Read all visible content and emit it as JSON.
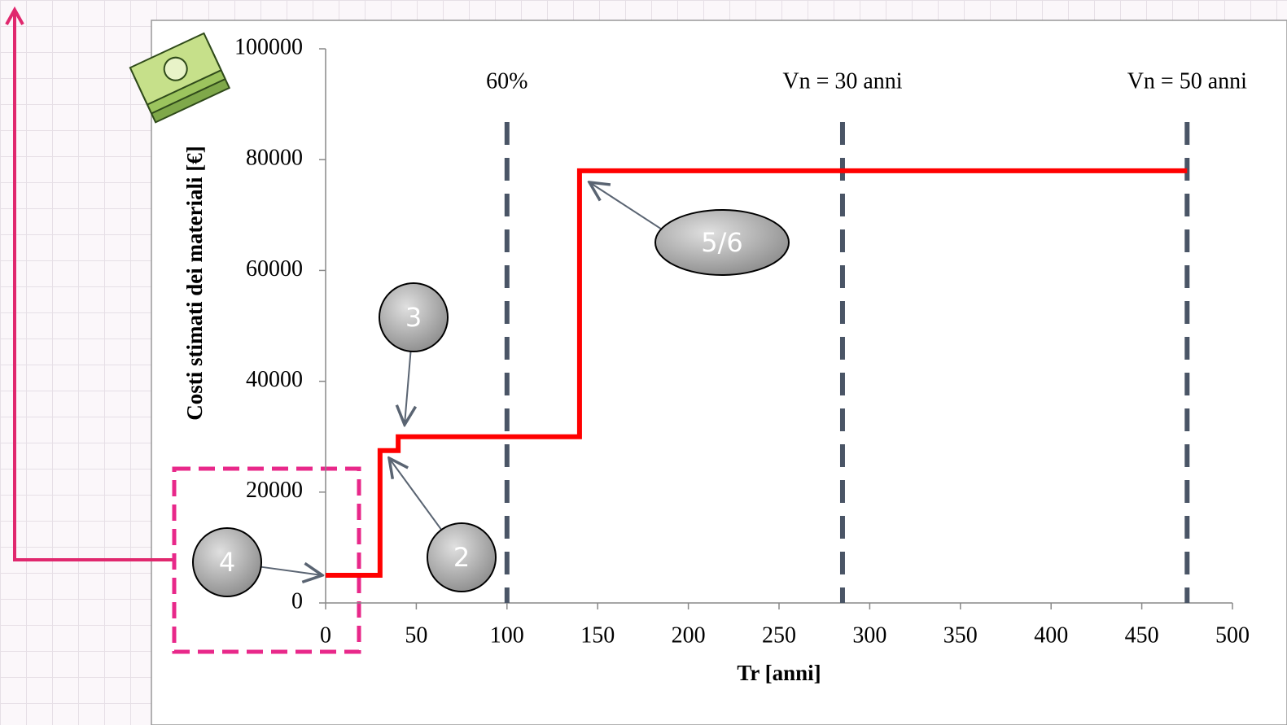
{
  "chart_data": {
    "type": "line",
    "x_label": "Tr [anni]",
    "y_label": "Costi stimati dei materiali [€]",
    "series": [
      {
        "color": "#ff0000",
        "x": [
          0,
          30,
          30,
          40,
          40,
          140,
          140,
          475
        ],
        "values": [
          5000,
          5000,
          27500,
          27500,
          30000,
          30000,
          78000,
          78000
        ]
      }
    ],
    "xlim": [
      0,
      500
    ],
    "xticks": [
      0,
      50,
      100,
      150,
      200,
      250,
      300,
      350,
      400,
      450,
      500
    ],
    "ylim": [
      0,
      100000
    ],
    "yticks": [
      0,
      20000,
      40000,
      60000,
      80000,
      100000
    ],
    "vlines": [
      {
        "x": 100,
        "label": "60%"
      },
      {
        "x": 285,
        "label": "Vn = 30 anni"
      },
      {
        "x": 475,
        "label": "Vn = 50 anni"
      }
    ],
    "vline_color": "#4a5566",
    "annotations": [
      "2",
      "3",
      "4",
      "5/6"
    ]
  }
}
